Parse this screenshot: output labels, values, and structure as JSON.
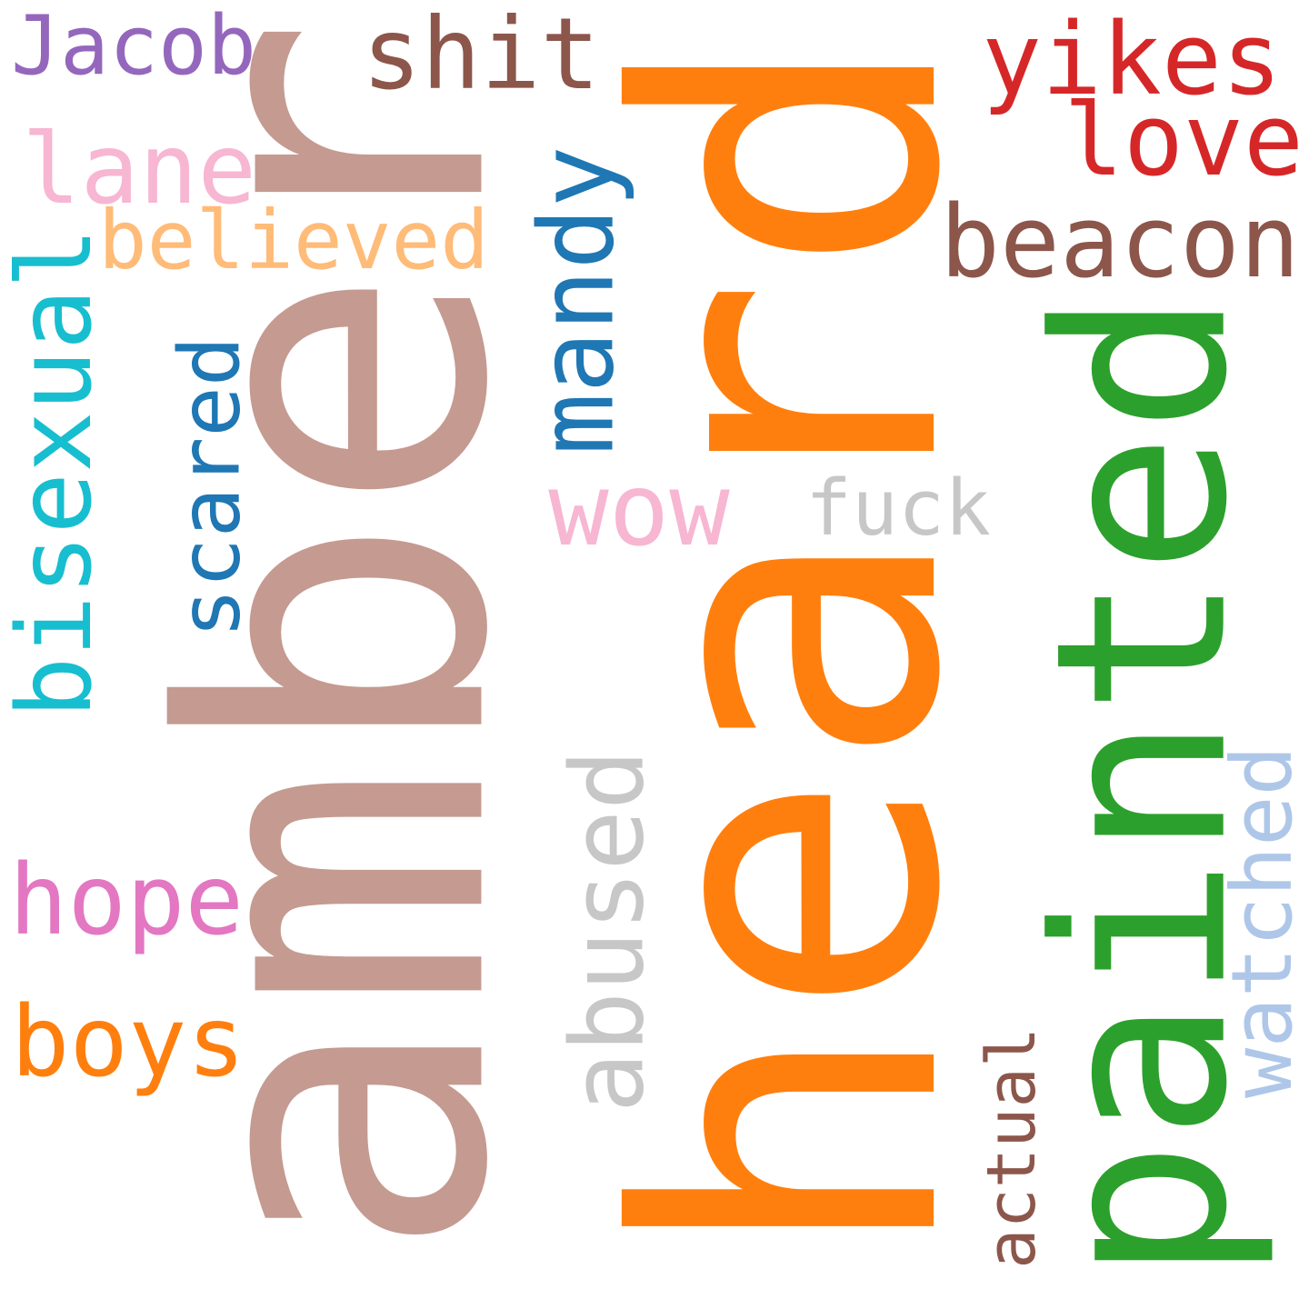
{
  "word_cloud": {
    "words": [
      {
        "text": "amber",
        "color": "#c49a91",
        "rotated": true
      },
      {
        "text": "heard",
        "color": "#ff7f0e",
        "rotated": true
      },
      {
        "text": "painted",
        "color": "#2ca02c",
        "rotated": true
      },
      {
        "text": "bisexual",
        "color": "#17becf",
        "rotated": true
      },
      {
        "text": "scared",
        "color": "#1f77b4",
        "rotated": true
      },
      {
        "text": "mandy",
        "color": "#1f77b4",
        "rotated": true
      },
      {
        "text": "abused",
        "color": "#c7c7c7",
        "rotated": true
      },
      {
        "text": "watched",
        "color": "#aec7e8",
        "rotated": true
      },
      {
        "text": "actual",
        "color": "#8c564b",
        "rotated": true
      },
      {
        "text": "Jacob",
        "color": "#9467bd",
        "rotated": false
      },
      {
        "text": "shit",
        "color": "#8c564b",
        "rotated": false
      },
      {
        "text": "yikes",
        "color": "#d62728",
        "rotated": false
      },
      {
        "text": "love",
        "color": "#d62728",
        "rotated": false
      },
      {
        "text": "lane",
        "color": "#f7b6d2",
        "rotated": false
      },
      {
        "text": "believed",
        "color": "#ffbb78",
        "rotated": false
      },
      {
        "text": "beacon",
        "color": "#8c564b",
        "rotated": false
      },
      {
        "text": "wow",
        "color": "#f7b6d2",
        "rotated": false
      },
      {
        "text": "fuck",
        "color": "#c7c7c7",
        "rotated": false
      },
      {
        "text": "hope",
        "color": "#e377c2",
        "rotated": false
      },
      {
        "text": "boys",
        "color": "#ff7f0e",
        "rotated": false
      }
    ]
  }
}
